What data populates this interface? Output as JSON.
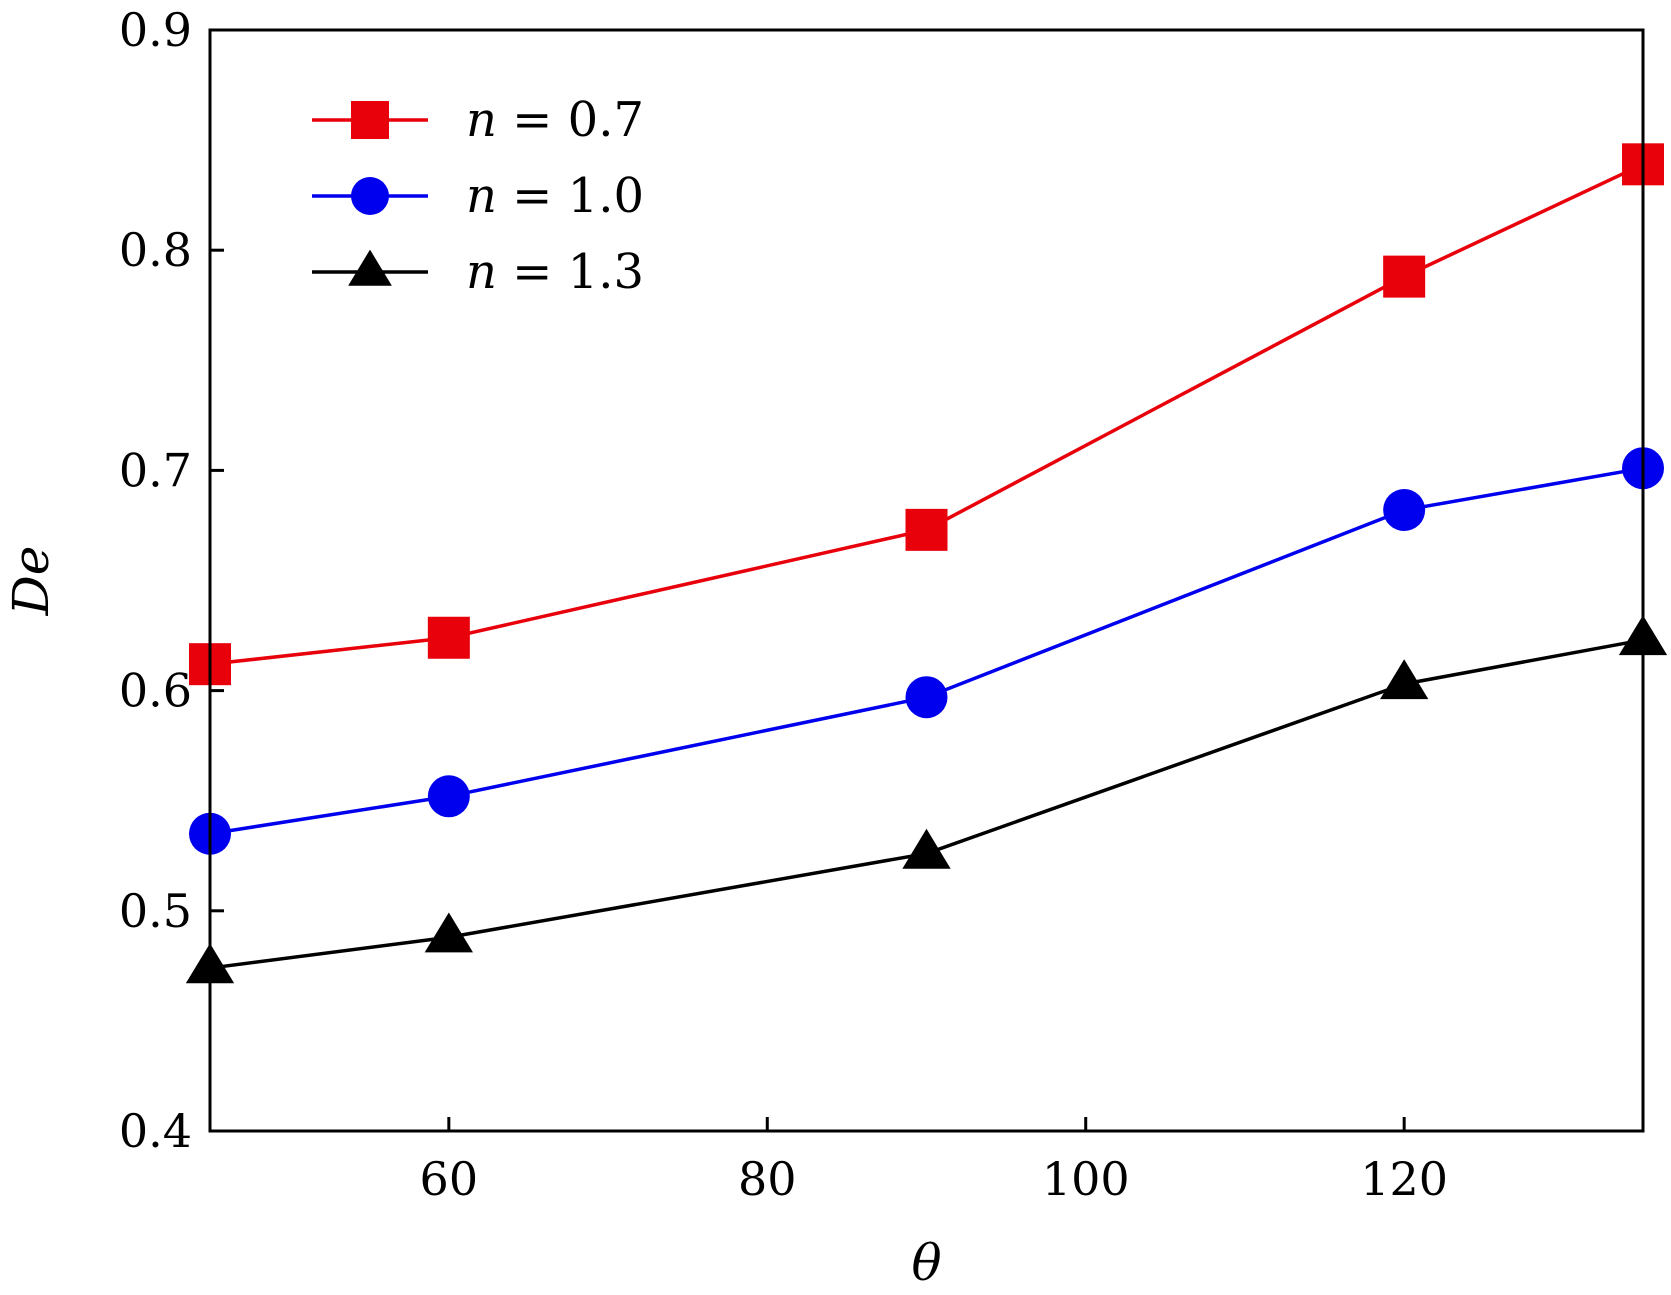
{
  "chart_data": {
    "type": "line",
    "title": "",
    "xlabel": "θ",
    "ylabel": "De",
    "xlim": [
      45,
      135
    ],
    "ylim": [
      0.4,
      0.9
    ],
    "xticks": [
      60,
      80,
      100,
      120
    ],
    "xtick_labels": [
      "60",
      "80",
      "100",
      "120"
    ],
    "yticks": [
      0.4,
      0.5,
      0.6,
      0.7,
      0.8,
      0.9
    ],
    "ytick_labels": [
      "0.4",
      "0.5",
      "0.6",
      "0.7",
      "0.8",
      "0.9"
    ],
    "x": [
      45,
      60,
      90,
      120,
      135
    ],
    "grid": false,
    "legend_position": "top-left",
    "series": [
      {
        "name": "n = 0.7",
        "name_var": "n",
        "name_rest": " = 0.7",
        "marker": "square",
        "color": "#e8000b",
        "values": [
          0.612,
          0.624,
          0.673,
          0.788,
          0.839
        ]
      },
      {
        "name": "n = 1.0",
        "name_var": "n",
        "name_rest": " = 1.0",
        "marker": "circle",
        "color": "#0000ee",
        "values": [
          0.535,
          0.552,
          0.597,
          0.682,
          0.701
        ]
      },
      {
        "name": "n = 1.3",
        "name_var": "n",
        "name_rest": " = 1.3",
        "marker": "triangle",
        "color": "#000000",
        "values": [
          0.474,
          0.488,
          0.526,
          0.603,
          0.623
        ]
      }
    ]
  }
}
